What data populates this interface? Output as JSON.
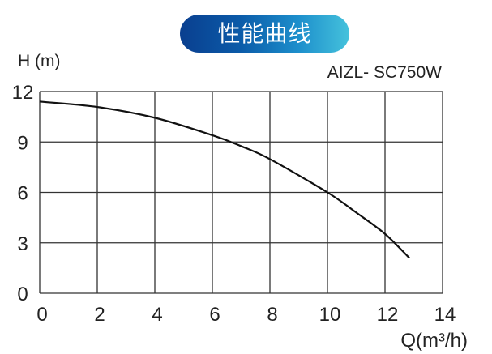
{
  "chart_data": {
    "type": "line",
    "title": "性能曲线",
    "subtitle": "AIZL- SC750W",
    "xlabel": "Q(m³/h)",
    "ylabel": "H (m)",
    "xlim": [
      0,
      14
    ],
    "ylim": [
      0,
      12
    ],
    "xticks": [
      "0",
      "2",
      "4",
      "6",
      "8",
      "10",
      "12",
      "14"
    ],
    "yticks": [
      "0",
      "3",
      "6",
      "9",
      "12"
    ],
    "grid": true,
    "series": [
      {
        "x": [
          0,
          2,
          4,
          6,
          7,
          8,
          10,
          11,
          12,
          12.85
        ],
        "y": [
          11.4,
          11.08,
          10.44,
          9.4,
          8.75,
          7.98,
          6.0,
          4.8,
          3.53,
          2.09
        ],
        "color": "#111111"
      }
    ],
    "title_colors": [
      "#0a3f8f",
      "#45c2dc"
    ]
  }
}
